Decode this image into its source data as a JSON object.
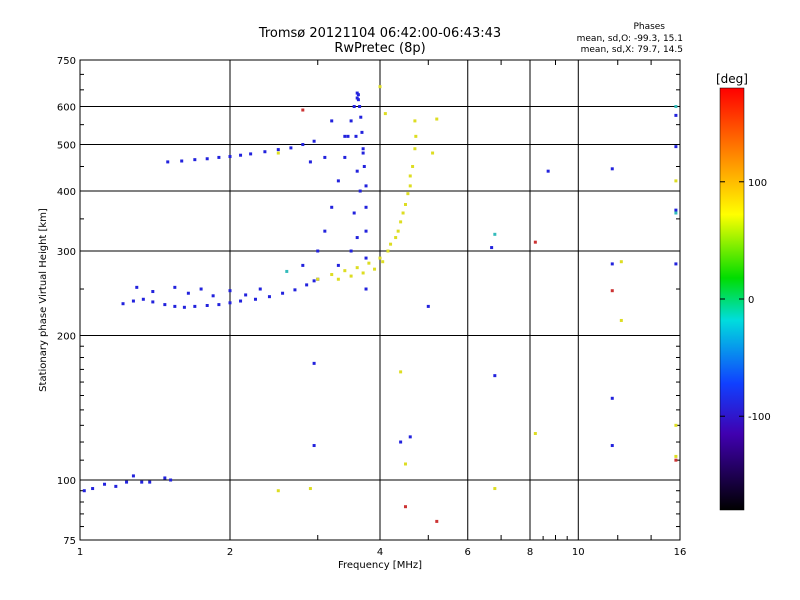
{
  "header": {
    "title_line1": "Tromsø 20121104 06:42:00-06:43:43",
    "title_line2": "RwPretec (8p)"
  },
  "phases": {
    "title": "Phases",
    "o_line": "mean, sd,O: -99.3, 15.1",
    "x_line": "mean, sd,X:  79.7, 14.5"
  },
  "colorbar": {
    "label": "[deg]",
    "range": [
      -180,
      180
    ],
    "ticks": [
      100,
      0,
      -100
    ]
  },
  "chart_data": {
    "type": "scatter",
    "title": "Tromsø 20121104 06:42:00-06:43:43",
    "subtitle": "RwPretec (8p)",
    "xlabel": "Frequency [MHz]",
    "ylabel": "Stationary phase Virtual Height [km]",
    "x_scale": "log",
    "y_scale": "log",
    "xlim": [
      1,
      16
    ],
    "ylim": [
      75,
      750
    ],
    "x_ticks": [
      1,
      2,
      4,
      6,
      8,
      10,
      16
    ],
    "y_ticks": [
      75,
      100,
      200,
      300,
      400,
      500,
      600,
      750
    ],
    "grid": true,
    "color_encodes": "phase [deg]",
    "series": [
      {
        "mode": "O",
        "color": "#2222dd",
        "points": [
          [
            1.02,
            95
          ],
          [
            1.06,
            96
          ],
          [
            1.12,
            98
          ],
          [
            1.18,
            97
          ],
          [
            1.24,
            99
          ],
          [
            1.28,
            102
          ],
          [
            1.33,
            99
          ],
          [
            1.38,
            99
          ],
          [
            1.48,
            101
          ],
          [
            1.52,
            100
          ],
          [
            1.22,
            233
          ],
          [
            1.28,
            236
          ],
          [
            1.34,
            238
          ],
          [
            1.4,
            235
          ],
          [
            1.48,
            232
          ],
          [
            1.55,
            230
          ],
          [
            1.62,
            229
          ],
          [
            1.7,
            230
          ],
          [
            1.8,
            231
          ],
          [
            1.9,
            232
          ],
          [
            2.0,
            234
          ],
          [
            2.1,
            236
          ],
          [
            2.25,
            238
          ],
          [
            2.4,
            241
          ],
          [
            2.55,
            245
          ],
          [
            2.7,
            249
          ],
          [
            2.85,
            255
          ],
          [
            2.95,
            260
          ],
          [
            3.0,
            262
          ],
          [
            1.3,
            252
          ],
          [
            1.4,
            247
          ],
          [
            1.55,
            252
          ],
          [
            1.65,
            245
          ],
          [
            1.75,
            250
          ],
          [
            1.85,
            242
          ],
          [
            2.0,
            248
          ],
          [
            2.15,
            243
          ],
          [
            2.3,
            250
          ],
          [
            1.5,
            460
          ],
          [
            1.6,
            462
          ],
          [
            1.7,
            465
          ],
          [
            1.8,
            467
          ],
          [
            1.9,
            470
          ],
          [
            2.0,
            472
          ],
          [
            2.1,
            475
          ],
          [
            2.2,
            478
          ],
          [
            2.35,
            483
          ],
          [
            2.5,
            488
          ],
          [
            2.65,
            492
          ],
          [
            2.8,
            500
          ],
          [
            2.95,
            508
          ],
          [
            2.8,
            280
          ],
          [
            3.0,
            300
          ],
          [
            3.1,
            330
          ],
          [
            3.2,
            370
          ],
          [
            3.3,
            420
          ],
          [
            3.4,
            470
          ],
          [
            3.45,
            520
          ],
          [
            3.5,
            560
          ],
          [
            3.55,
            600
          ],
          [
            3.6,
            625
          ],
          [
            3.62,
            635
          ],
          [
            3.75,
            250
          ],
          [
            3.75,
            290
          ],
          [
            3.75,
            330
          ],
          [
            3.75,
            370
          ],
          [
            3.75,
            410
          ],
          [
            3.72,
            450
          ],
          [
            3.7,
            490
          ],
          [
            3.68,
            530
          ],
          [
            3.66,
            570
          ],
          [
            3.64,
            600
          ],
          [
            3.62,
            620
          ],
          [
            3.6,
            640
          ],
          [
            3.3,
            280
          ],
          [
            3.5,
            300
          ],
          [
            3.6,
            320
          ],
          [
            3.55,
            360
          ],
          [
            3.65,
            400
          ],
          [
            3.6,
            440
          ],
          [
            3.7,
            480
          ],
          [
            3.58,
            520
          ],
          [
            2.9,
            460
          ],
          [
            3.1,
            470
          ],
          [
            3.4,
            520
          ],
          [
            3.2,
            560
          ],
          [
            6.7,
            305
          ],
          [
            6.8,
            165
          ],
          [
            4.4,
            120
          ],
          [
            4.6,
            123
          ],
          [
            5.0,
            230
          ],
          [
            8.7,
            440
          ],
          [
            11.7,
            445
          ],
          [
            11.7,
            282
          ],
          [
            11.7,
            148
          ],
          [
            11.7,
            118
          ],
          [
            15.7,
            575
          ],
          [
            15.7,
            365
          ],
          [
            15.7,
            282
          ],
          [
            15.7,
            495
          ],
          [
            2.95,
            175
          ],
          [
            2.95,
            118
          ]
        ]
      },
      {
        "mode": "X",
        "color": "#dddd22",
        "points": [
          [
            3.0,
            262
          ],
          [
            3.2,
            268
          ],
          [
            3.4,
            273
          ],
          [
            3.6,
            277
          ],
          [
            3.8,
            283
          ],
          [
            4.0,
            290
          ],
          [
            4.15,
            300
          ],
          [
            4.3,
            320
          ],
          [
            4.4,
            345
          ],
          [
            4.5,
            375
          ],
          [
            4.6,
            410
          ],
          [
            4.65,
            450
          ],
          [
            4.7,
            490
          ],
          [
            4.72,
            520
          ],
          [
            3.3,
            262
          ],
          [
            3.5,
            266
          ],
          [
            3.7,
            270
          ],
          [
            3.9,
            275
          ],
          [
            4.05,
            285
          ],
          [
            4.2,
            310
          ],
          [
            4.35,
            330
          ],
          [
            4.45,
            360
          ],
          [
            4.55,
            395
          ],
          [
            4.6,
            430
          ],
          [
            4.1,
            580
          ],
          [
            4.7,
            560
          ],
          [
            5.2,
            565
          ],
          [
            5.1,
            480
          ],
          [
            4.4,
            168
          ],
          [
            4.5,
            108
          ],
          [
            2.5,
            95
          ],
          [
            2.9,
            96
          ],
          [
            8.2,
            125
          ],
          [
            6.8,
            96
          ],
          [
            12.2,
            285
          ],
          [
            12.2,
            215
          ],
          [
            15.7,
            420
          ],
          [
            15.7,
            130
          ],
          [
            15.7,
            112
          ],
          [
            2.5,
            480
          ],
          [
            4.0,
            660
          ]
        ]
      },
      {
        "mode": "other",
        "color": "#cc3333",
        "points": [
          [
            2.8,
            590
          ],
          [
            4.5,
            88
          ],
          [
            5.2,
            82
          ],
          [
            8.2,
            313
          ],
          [
            11.7,
            248
          ],
          [
            15.7,
            110
          ]
        ]
      },
      {
        "mode": "other",
        "color": "#33bbbb",
        "points": [
          [
            2.6,
            272
          ],
          [
            6.8,
            325
          ],
          [
            15.7,
            600
          ],
          [
            15.7,
            360
          ]
        ]
      }
    ]
  }
}
